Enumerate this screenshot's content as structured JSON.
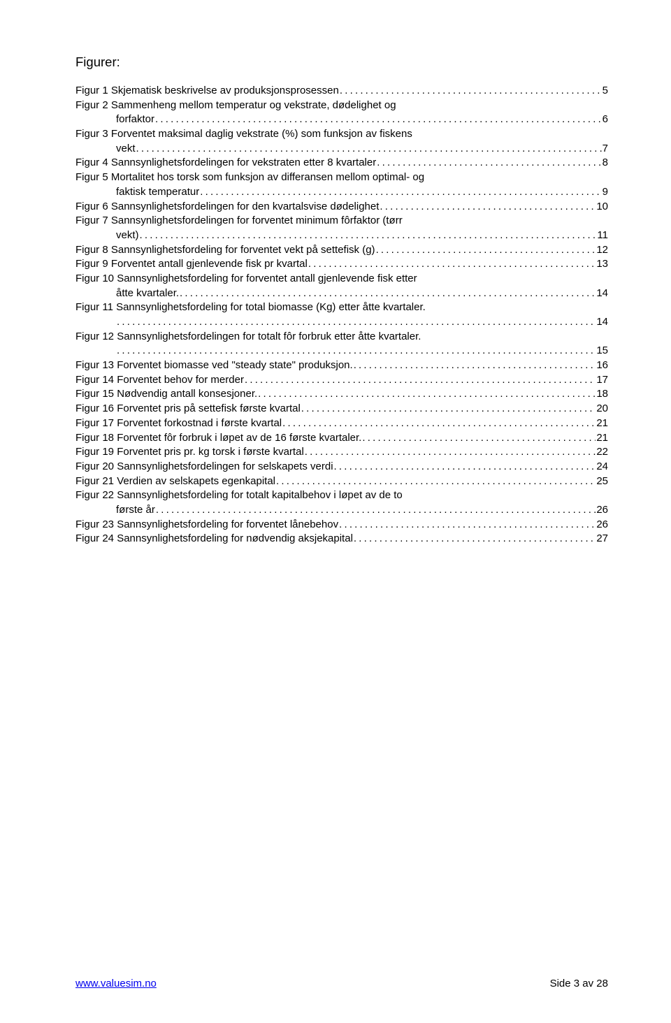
{
  "heading": "Figurer:",
  "entries": [
    {
      "label": "Figur 1 Skjematisk beskrivelse av produksjonsprosessen",
      "page": "5",
      "continuation": false
    },
    {
      "label": "Figur 2 Sammenheng mellom temperatur og vekstrate, dødelighet  og",
      "page": "",
      "continuation": false
    },
    {
      "label": "forfaktor",
      "page": "6",
      "continuation": true
    },
    {
      "label": "Figur 3 Forventet maksimal daglig vekstrate (%) som funksjon av fiskens",
      "page": "",
      "continuation": false
    },
    {
      "label": "vekt",
      "page": "7",
      "continuation": true
    },
    {
      "label": "Figur 4 Sannsynlighetsfordelingen for vekstraten etter 8 kvartaler",
      "page": "8",
      "continuation": false
    },
    {
      "label": "Figur 5 Mortalitet hos torsk som funksjon av differansen mellom optimal- og",
      "page": "",
      "continuation": false
    },
    {
      "label": "faktisk temperatur",
      "page": "9",
      "continuation": true
    },
    {
      "label": "Figur 6 Sannsynlighetsfordelingen for den kvartalsvise dødelighet",
      "page": "10",
      "continuation": false
    },
    {
      "label": "Figur 7 Sannsynlighetsfordelingen for forventet minimum fôrfaktor (tørr",
      "page": "",
      "continuation": false
    },
    {
      "label": "vekt)",
      "page": "11",
      "continuation": true
    },
    {
      "label": "Figur 8 Sannsynlighetsfordeling for forventet vekt på settefisk (g)",
      "page": "12",
      "continuation": false
    },
    {
      "label": "Figur 9 Forventet antall gjenlevende fisk pr kvartal",
      "page": "13",
      "continuation": false
    },
    {
      "label": "Figur 10 Sannsynlighetsfordeling for forventet antall gjenlevende fisk etter",
      "page": "",
      "continuation": false
    },
    {
      "label": "åtte kvartaler.",
      "page": "14",
      "continuation": true
    },
    {
      "label": "Figur 11 Sannsynlighetsfordeling for total biomasse (Kg) etter åtte kvartaler.",
      "page": "",
      "continuation": false
    },
    {
      "label": "",
      "page": "14",
      "continuation": true
    },
    {
      "label": "Figur 12 Sannsynlighetsfordelingen for totalt fôr forbruk etter åtte kvartaler.",
      "page": "",
      "continuation": false
    },
    {
      "label": "",
      "page": "15",
      "continuation": true
    },
    {
      "label": "Figur 13 Forventet biomasse ved \"steady state\" produksjon.",
      "page": "16",
      "continuation": false
    },
    {
      "label": "Figur 14 Forventet behov for merder",
      "page": "17",
      "continuation": false
    },
    {
      "label": "Figur 15 Nødvendig antall konsesjoner.",
      "page": "18",
      "continuation": false
    },
    {
      "label": "Figur 16 Forventet pris på settefisk første kvartal",
      "page": "20",
      "continuation": false
    },
    {
      "label": "Figur 17 Forventet forkostnad i første kvartal",
      "page": "21",
      "continuation": false
    },
    {
      "label": "Figur 18 Forventet fôr forbruk i løpet av de 16 første kvartaler.",
      "page": "21",
      "continuation": false
    },
    {
      "label": "Figur 19 Forventet pris pr. kg torsk i første kvartal",
      "page": "22",
      "continuation": false
    },
    {
      "label": "Figur 20 Sannsynlighetsfordelingen for selskapets verdi",
      "page": "24",
      "continuation": false
    },
    {
      "label": "Figur 21 Verdien av selskapets egenkapital",
      "page": "25",
      "continuation": false
    },
    {
      "label": "Figur 22 Sannsynlighetsfordeling for totalt kapitalbehov i løpet av de to",
      "page": "",
      "continuation": false
    },
    {
      "label": "første år",
      "page": "26",
      "continuation": true
    },
    {
      "label": "Figur 23 Sannsynlighetsfordeling for forventet lånebehov",
      "page": "26",
      "continuation": false
    },
    {
      "label": "Figur 24 Sannsynlighetsfordeling for nødvendig aksjekapital",
      "page": "27",
      "continuation": false
    }
  ],
  "footer": {
    "link": "www.valuesim.no",
    "pageinfo": "Side 3 av 28"
  }
}
